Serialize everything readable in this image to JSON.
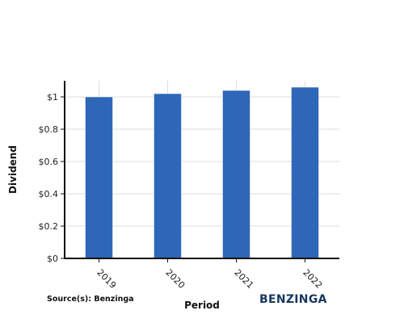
{
  "chart_data": {
    "type": "bar",
    "categories": [
      "2019",
      "2020",
      "2021",
      "2022"
    ],
    "values": [
      1.0,
      1.02,
      1.04,
      1.06
    ],
    "xlabel": "Period",
    "ylabel": "Dividend",
    "ylim": [
      0,
      1.1
    ],
    "yticks": [
      0,
      0.2,
      0.4,
      0.6,
      0.8,
      1.0
    ],
    "ytick_labels": [
      "$0",
      "$0.2",
      "$0.4",
      "$0.6",
      "$0.8",
      "$1"
    ],
    "grid": true,
    "bar_color": "#2e67b8",
    "legend": "none"
  },
  "footer": {
    "source": "Source(s): Benzinga",
    "brand": "BENZINGA"
  }
}
